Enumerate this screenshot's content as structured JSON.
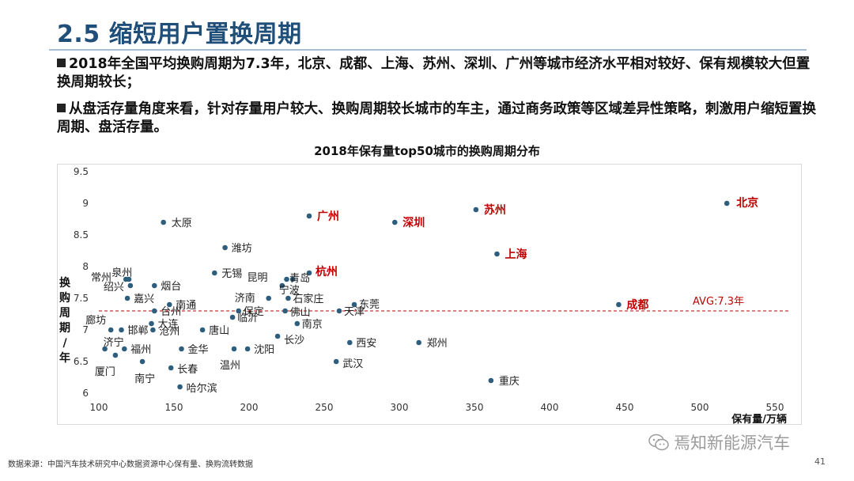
{
  "header": {
    "title": "2.5 缩短用户置换周期"
  },
  "bullets": [
    "2018年全国平均换购周期为7.3年，北京、成都、上海、苏州、深圳、广州等城市经济水平相对较好、保有规模较大但置换周期较长；",
    "从盘活存量角度来看，针对存量用户较大、换购周期较长城市的车主，通过商务政策等区域差异性策略，刺激用户缩短置换周期、盘活存量。"
  ],
  "chart_data": {
    "type": "scatter",
    "title": "2018年保有量top50城市的换购周期分布",
    "xlabel": "保有量/万辆",
    "ylabel": "换购周期/年",
    "xlim": [
      100,
      550
    ],
    "ylim": [
      6,
      9.5
    ],
    "xticks": [
      100,
      150,
      200,
      250,
      300,
      350,
      400,
      450,
      500,
      550
    ],
    "yticks": [
      6,
      6.5,
      7,
      7.5,
      8,
      8.5,
      9,
      9.5
    ],
    "grid": false,
    "avg_line": {
      "value": 7.3,
      "label": "AVG:7.3年"
    },
    "colors": {
      "point": "#2e5e7e",
      "highlight": "#c00000",
      "avg": "#c00000"
    },
    "points": [
      {
        "name": "北京",
        "x": 518,
        "y": 9.0,
        "highlight": true
      },
      {
        "name": "苏州",
        "x": 351,
        "y": 8.9,
        "highlight": true
      },
      {
        "name": "广州",
        "x": 240,
        "y": 8.8,
        "highlight": true
      },
      {
        "name": "深圳",
        "x": 297,
        "y": 8.7,
        "highlight": true
      },
      {
        "name": "上海",
        "x": 365,
        "y": 8.2,
        "highlight": true
      },
      {
        "name": "杭州",
        "x": 240,
        "y": 7.9,
        "highlight": true
      },
      {
        "name": "成都",
        "x": 446,
        "y": 7.4,
        "highlight": true
      },
      {
        "name": "太原",
        "x": 143,
        "y": 8.7
      },
      {
        "name": "潍坊",
        "x": 184,
        "y": 8.3
      },
      {
        "name": "无锡",
        "x": 177,
        "y": 7.9
      },
      {
        "name": "泉州",
        "x": 118,
        "y": 7.8
      },
      {
        "name": "常州",
        "x": 120,
        "y": 7.8
      },
      {
        "name": "绍兴",
        "x": 121,
        "y": 7.7
      },
      {
        "name": "烟台",
        "x": 137,
        "y": 7.7
      },
      {
        "name": "嘉兴",
        "x": 119,
        "y": 7.5
      },
      {
        "name": "南通",
        "x": 147,
        "y": 7.4
      },
      {
        "name": "台州",
        "x": 137,
        "y": 7.3
      },
      {
        "name": "昆明",
        "x": 225,
        "y": 7.8
      },
      {
        "name": "青岛",
        "x": 229,
        "y": 7.8
      },
      {
        "name": "宁波",
        "x": 222,
        "y": 7.7
      },
      {
        "name": "济南",
        "x": 213,
        "y": 7.5
      },
      {
        "name": "石家庄",
        "x": 226,
        "y": 7.5
      },
      {
        "name": "郑州",
        "x": 313,
        "y": 6.8
      },
      {
        "name": "东莞",
        "x": 270,
        "y": 7.4
      },
      {
        "name": "天津",
        "x": 260,
        "y": 7.3
      },
      {
        "name": "佛山",
        "x": 224,
        "y": 7.3
      },
      {
        "name": "保定",
        "x": 193,
        "y": 7.3
      },
      {
        "name": "临沂",
        "x": 189,
        "y": 7.2
      },
      {
        "name": "南京",
        "x": 232,
        "y": 7.1
      },
      {
        "name": "廊坊",
        "x": 108,
        "y": 7.0
      },
      {
        "name": "邯郸",
        "x": 115,
        "y": 7.0
      },
      {
        "name": "大连",
        "x": 135,
        "y": 7.1
      },
      {
        "name": "沧州",
        "x": 136,
        "y": 7.0
      },
      {
        "name": "唐山",
        "x": 169,
        "y": 7.0
      },
      {
        "name": "长沙",
        "x": 219,
        "y": 6.9
      },
      {
        "name": "西安",
        "x": 267,
        "y": 6.8
      },
      {
        "name": "济宁",
        "x": 104,
        "y": 6.7
      },
      {
        "name": "福州",
        "x": 117,
        "y": 6.7
      },
      {
        "name": "金华",
        "x": 155,
        "y": 6.7
      },
      {
        "name": "沈阳",
        "x": 199,
        "y": 6.7
      },
      {
        "name": "温州",
        "x": 190,
        "y": 6.7
      },
      {
        "name": "厦门",
        "x": 111,
        "y": 6.6
      },
      {
        "name": "南宁",
        "x": 129,
        "y": 6.5
      },
      {
        "name": "武汉",
        "x": 258,
        "y": 6.5
      },
      {
        "name": "长春",
        "x": 148,
        "y": 6.4
      },
      {
        "name": "重庆",
        "x": 361,
        "y": 6.2
      },
      {
        "name": "哈尔滨",
        "x": 154,
        "y": 6.1
      }
    ]
  },
  "footer": {
    "source": "数据来源：中国汽车技术研究中心数据资源中心保有量、换购流转数据",
    "page": "41",
    "watermark": "焉知新能源汽车"
  }
}
